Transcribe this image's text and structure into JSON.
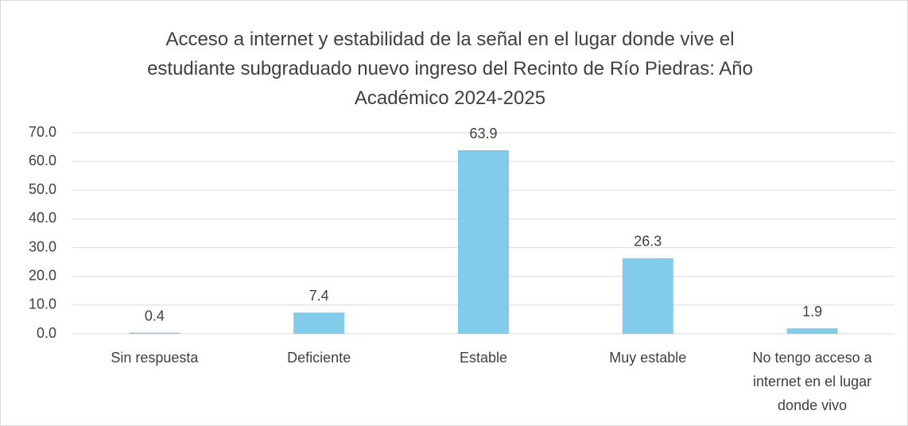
{
  "chart_data": {
    "type": "bar",
    "title": "Acceso a internet y estabilidad de la señal en el lugar donde vive el estudiante subgraduado nuevo ingreso del Recinto de Río Piedras:  Año Académico 2024-2025",
    "categories": [
      "Sin respuesta",
      "Deficiente",
      "Estable",
      "Muy estable",
      "No tengo acceso a internet en el lugar donde vivo"
    ],
    "values": [
      0.4,
      7.4,
      63.9,
      26.3,
      1.9
    ],
    "color": "#83cbeb",
    "ylim": [
      0,
      70
    ],
    "yticks": [
      {
        "value": 0,
        "label": "0.0"
      },
      {
        "value": 10,
        "label": "10.0"
      },
      {
        "value": 20,
        "label": "20.0"
      },
      {
        "value": 30,
        "label": "30.0"
      },
      {
        "value": 40,
        "label": "40.0"
      },
      {
        "value": 50,
        "label": "50.0"
      },
      {
        "value": 60,
        "label": "60.0"
      },
      {
        "value": 70,
        "label": "70.0"
      }
    ],
    "grid": true
  }
}
